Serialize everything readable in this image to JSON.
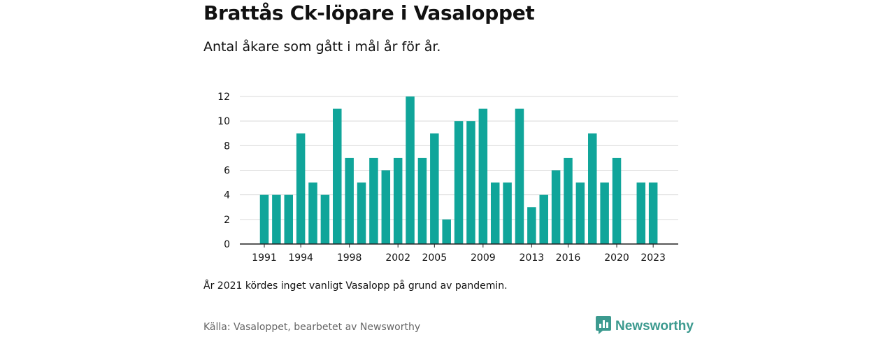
{
  "title": "Brattås Ck-löpare i Vasaloppet",
  "subtitle": "Antal åkare som gått i mål år för år.",
  "note": "År 2021 kördes inget vanligt Vasalopp på grund av pandemin.",
  "source": "Källa: Vasaloppet, bearbetet av Newsworthy",
  "brand": {
    "name": "Newsworthy",
    "icon": "newsworthy-logo-icon",
    "color": "#3c9a8f"
  },
  "chart_data": {
    "type": "bar",
    "title": "",
    "xlabel": "",
    "ylabel": "",
    "bar_color": "#10a59a",
    "grid": true,
    "ylim": [
      0,
      12
    ],
    "yticks": [
      0,
      2,
      4,
      6,
      8,
      10,
      12
    ],
    "xticks": [
      1991,
      1994,
      1998,
      2002,
      2005,
      2009,
      2013,
      2016,
      2020,
      2023
    ],
    "categories": [
      1991,
      1992,
      1993,
      1994,
      1995,
      1996,
      1997,
      1998,
      1999,
      2000,
      2001,
      2002,
      2003,
      2004,
      2005,
      2006,
      2007,
      2008,
      2009,
      2010,
      2011,
      2012,
      2013,
      2014,
      2015,
      2016,
      2017,
      2018,
      2019,
      2020,
      2021,
      2022,
      2023
    ],
    "values": [
      4,
      4,
      4,
      9,
      5,
      4,
      11,
      7,
      5,
      7,
      6,
      7,
      12,
      7,
      9,
      2,
      10,
      10,
      11,
      5,
      5,
      11,
      3,
      4,
      6,
      7,
      5,
      9,
      5,
      7,
      null,
      5,
      5
    ]
  }
}
